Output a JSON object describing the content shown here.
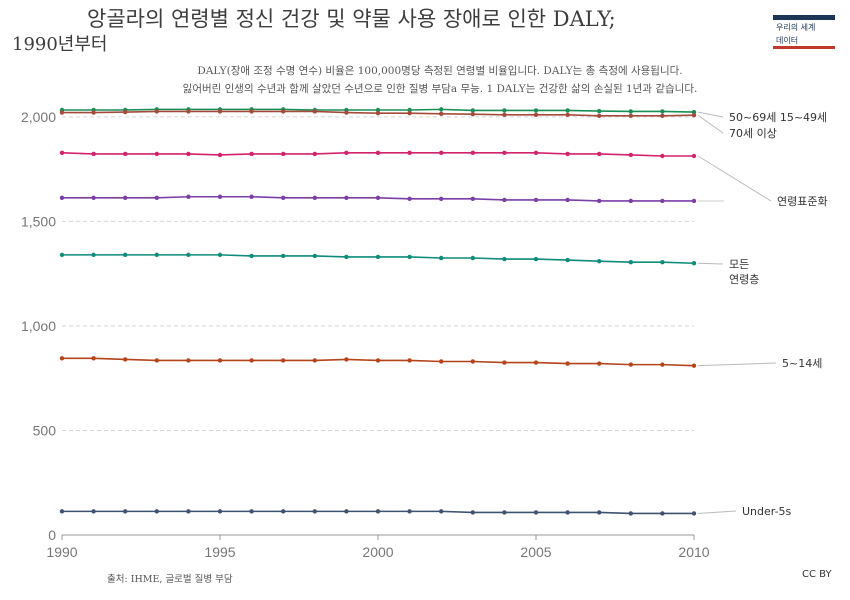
{
  "header": {
    "title_line1": "앙골라의 연령별 정신 건강 및 약물 사용 장애로 인한 DALY;",
    "title_line2": "1990년부터",
    "subtitle_line1": "DALY(장애 조정 수명 연수) 비율은 100,000명당 측정된 연령별 비율입니다. DALY는 총 측정에 사용됩니다.",
    "subtitle_line2": "잃어버린 인생의 수년과 함께 살았던 수년으로 인한 질병 부담a 무능. 1 DALY는 건강한 삶의 손실된 1년과 같습니다."
  },
  "logo": {
    "line1": "우리의 세계",
    "line2": "데이터",
    "bar_top_color": "#1d3557",
    "bar_bottom_color": "#c0392b"
  },
  "footer": {
    "source": "출처: IHME, 글로벌 질병 부담",
    "license": "CC BY"
  },
  "chart_data": {
    "type": "line",
    "x": [
      1990,
      1991,
      1992,
      1993,
      1994,
      1995,
      1996,
      1997,
      1998,
      1999,
      2000,
      2001,
      2002,
      2003,
      2004,
      2005,
      2006,
      2007,
      2008,
      2009,
      2010
    ],
    "xlim": [
      1990,
      2010
    ],
    "ylim": [
      0,
      2100
    ],
    "x_ticks": [
      {
        "value": 1990,
        "label": "1990"
      },
      {
        "value": 1995,
        "label": "1995"
      },
      {
        "value": 2000,
        "label": "2000"
      },
      {
        "value": 2005,
        "label": "2005"
      },
      {
        "value": 2010,
        "label": "2010"
      }
    ],
    "y_ticks": [
      {
        "value": 0,
        "label": "0"
      },
      {
        "value": 500,
        "label": "500"
      },
      {
        "value": 1000,
        "label": "1,0o0"
      },
      {
        "value": 1500,
        "label": "1,500"
      },
      {
        "value": 2000,
        "label": "2,000"
      }
    ],
    "grid": true,
    "series": [
      {
        "name": "50~69세 15~49세",
        "color": "#1a8f55",
        "values": [
          2033,
          2033,
          2033,
          2036,
          2036,
          2036,
          2036,
          2036,
          2033,
          2033,
          2033,
          2033,
          2036,
          2031,
          2031,
          2031,
          2031,
          2028,
          2026,
          2026,
          2023
        ]
      },
      {
        "name": "70세 이상",
        "color": "#a64b3c",
        "values": [
          2021,
          2021,
          2023,
          2026,
          2026,
          2026,
          2026,
          2026,
          2026,
          2021,
          2018,
          2018,
          2015,
          2013,
          2010,
          2010,
          2010,
          2005,
          2005,
          2005,
          2008
        ]
      },
      {
        "name": "연령표준화",
        "color": "#d4226b",
        "values": [
          1828,
          1823,
          1823,
          1823,
          1823,
          1818,
          1823,
          1823,
          1823,
          1828,
          1828,
          1828,
          1828,
          1828,
          1828,
          1828,
          1823,
          1823,
          1818,
          1813,
          1813
        ]
      },
      {
        "name": "",
        "color": "#7b3fa8",
        "values": [
          1613,
          1613,
          1613,
          1613,
          1618,
          1618,
          1618,
          1613,
          1613,
          1613,
          1613,
          1608,
          1608,
          1608,
          1603,
          1603,
          1603,
          1598,
          1598,
          1598,
          1598
        ]
      },
      {
        "name": "모든 연령층",
        "color": "#0f8c7a",
        "values": [
          1340,
          1340,
          1340,
          1340,
          1340,
          1340,
          1335,
          1335,
          1335,
          1330,
          1330,
          1330,
          1325,
          1325,
          1320,
          1320,
          1315,
          1310,
          1305,
          1305,
          1300
        ]
      },
      {
        "name": "5~14세",
        "color": "#b5441a",
        "values": [
          845,
          845,
          840,
          835,
          835,
          835,
          835,
          835,
          835,
          840,
          835,
          835,
          830,
          830,
          825,
          825,
          820,
          820,
          815,
          815,
          810
        ]
      },
      {
        "name": "Under-5s",
        "color": "#3f5270",
        "values": [
          113,
          113,
          113,
          113,
          113,
          113,
          113,
          113,
          113,
          113,
          113,
          113,
          113,
          108,
          108,
          108,
          108,
          108,
          103,
          103,
          103
        ]
      }
    ]
  }
}
